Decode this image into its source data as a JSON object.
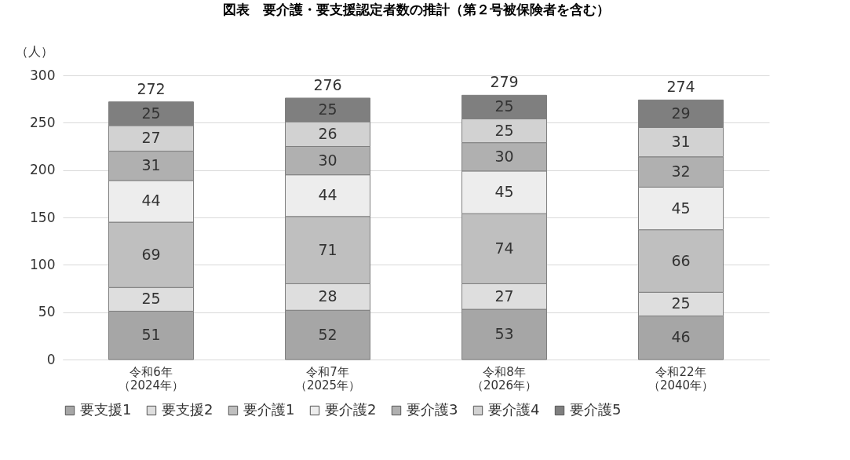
{
  "chart_data": {
    "type": "bar",
    "title": "図表　要介護・要支援認定者数の推計（第２号被保険者を含む）",
    "ylabel": "（人）",
    "categories": [
      "令和6年（2024年）",
      "令和7年（2025年）",
      "令和8年（2026年）",
      "令和22年（2040年）"
    ],
    "stacked": true,
    "data_labels": true,
    "legend": "bottom",
    "grid": "y",
    "ylim": [
      0,
      300
    ],
    "yticks": [
      0,
      50,
      100,
      150,
      200,
      250,
      300
    ],
    "totals": [
      "272",
      "276",
      "279",
      "274"
    ],
    "series": [
      {
        "name": "要支援1",
        "color": "#a6a6a6",
        "values": [
          51,
          52,
          53,
          46
        ]
      },
      {
        "name": "要支援2",
        "color": "#dedede",
        "values": [
          25,
          28,
          27,
          25
        ]
      },
      {
        "name": "要介護1",
        "color": "#bfbfbf",
        "values": [
          69,
          71,
          74,
          66
        ]
      },
      {
        "name": "要介護2",
        "color": "#ededed",
        "values": [
          44,
          44,
          45,
          45
        ]
      },
      {
        "name": "要介護3",
        "color": "#b0b0b0",
        "values": [
          31,
          30,
          30,
          32
        ]
      },
      {
        "name": "要介護4",
        "color": "#d2d2d2",
        "values": [
          27,
          26,
          25,
          31
        ]
      },
      {
        "name": "要介護5",
        "color": "#7f7f7f",
        "values": [
          25,
          25,
          25,
          29
        ]
      }
    ]
  }
}
